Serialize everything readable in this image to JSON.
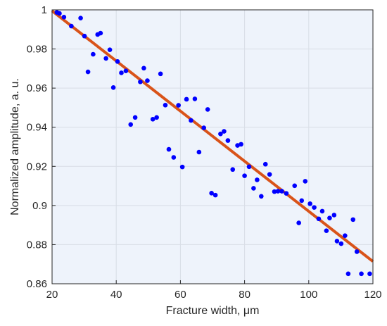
{
  "chart_data": {
    "type": "scatter",
    "title": "",
    "xlabel": "Fracture width, μm",
    "ylabel": "Normalized amplitude, a. u.",
    "xlim": [
      20,
      120
    ],
    "ylim": [
      0.86,
      1.0
    ],
    "xticks": [
      20,
      40,
      60,
      80,
      100,
      120
    ],
    "xtick_labels": [
      "20",
      "40",
      "60",
      "80",
      "100",
      "120"
    ],
    "yticks": [
      0.86,
      0.88,
      0.9,
      0.92,
      0.94,
      0.96,
      0.98,
      1.0
    ],
    "ytick_labels": [
      "0.86",
      "0.88",
      "0.9",
      "0.92",
      "0.94",
      "0.96",
      "0.98",
      "1"
    ],
    "grid": true,
    "legend": "none",
    "colors": {
      "background": "#eef3fb",
      "points": "#0000ff",
      "fit": "#d95319",
      "grid": "#d8dde6",
      "axis": "#262626"
    },
    "series": [
      {
        "kind": "points",
        "x": [
          21.5,
          22.3,
          23.7,
          26.0,
          28.9,
          30.1,
          31.2,
          32.8,
          34.2,
          35.1,
          36.8,
          38.0,
          39.1,
          40.4,
          41.6,
          43.0,
          44.5,
          45.9,
          47.5,
          48.6,
          49.7,
          51.4,
          52.6,
          53.8,
          55.3,
          56.4,
          57.9,
          59.4,
          60.6,
          61.9,
          63.3,
          64.5,
          65.8,
          67.3,
          68.5,
          69.7,
          70.9,
          72.5,
          73.6,
          74.8,
          76.3,
          77.8,
          78.9,
          80.0,
          81.4,
          82.8,
          83.9,
          85.2,
          86.5,
          87.8,
          89.3,
          90.4,
          91.6,
          93.0,
          95.6,
          96.9,
          97.8,
          98.9,
          100.4,
          101.7,
          103.1,
          104.2,
          105.5,
          106.5,
          107.9,
          108.8,
          110.1,
          111.3,
          112.3,
          113.8,
          115.0,
          116.4,
          119.0
        ],
        "y": [
          0.9987,
          0.9982,
          0.9963,
          0.9917,
          0.9958,
          0.9866,
          0.9683,
          0.9773,
          0.9874,
          0.9881,
          0.9752,
          0.9796,
          0.9603,
          0.9736,
          0.9678,
          0.9688,
          0.9414,
          0.945,
          0.9632,
          0.9702,
          0.9638,
          0.9441,
          0.945,
          0.9673,
          0.9513,
          0.9287,
          0.9246,
          0.9512,
          0.9197,
          0.9543,
          0.9435,
          0.9545,
          0.9273,
          0.9397,
          0.9491,
          0.9063,
          0.9053,
          0.9366,
          0.9379,
          0.9332,
          0.9184,
          0.9307,
          0.9313,
          0.9152,
          0.9198,
          0.9088,
          0.9131,
          0.9047,
          0.9211,
          0.9159,
          0.9071,
          0.9073,
          0.9073,
          0.9062,
          0.9101,
          0.8911,
          0.9025,
          0.9124,
          0.9009,
          0.899,
          0.8932,
          0.8971,
          0.8871,
          0.8936,
          0.8951,
          0.8818,
          0.8805,
          0.8846,
          0.8651,
          0.8928,
          0.8764,
          0.8651,
          0.8651
        ]
      },
      {
        "kind": "fit-line",
        "x": [
          20,
          120
        ],
        "y": [
          0.9995,
          0.8714
        ]
      }
    ]
  }
}
